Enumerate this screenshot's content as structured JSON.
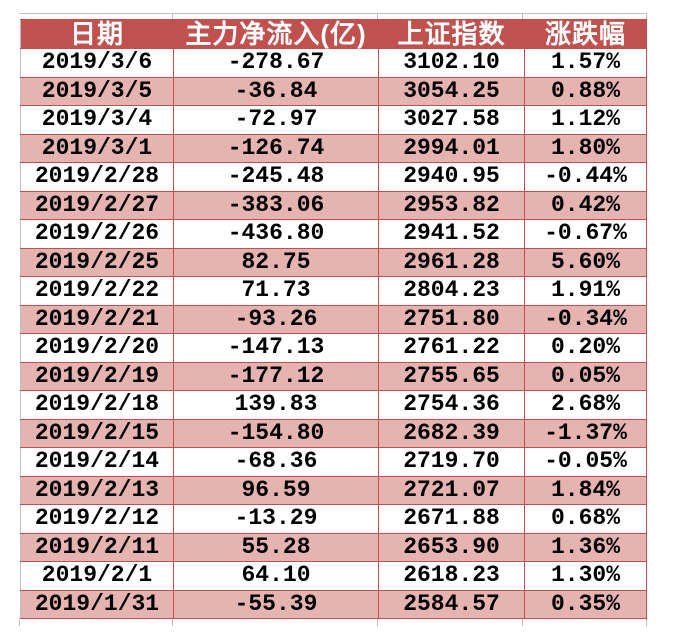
{
  "chart_data": {
    "type": "table",
    "columns": [
      "日期",
      "主力净流入(亿)",
      "上证指数",
      "涨跌幅"
    ],
    "rows": [
      [
        "2019/3/6",
        "-278.67",
        "3102.10",
        "1.57%"
      ],
      [
        "2019/3/5",
        "-36.84",
        "3054.25",
        "0.88%"
      ],
      [
        "2019/3/4",
        "-72.97",
        "3027.58",
        "1.12%"
      ],
      [
        "2019/3/1",
        "-126.74",
        "2994.01",
        "1.80%"
      ],
      [
        "2019/2/28",
        "-245.48",
        "2940.95",
        "-0.44%"
      ],
      [
        "2019/2/27",
        "-383.06",
        "2953.82",
        "0.42%"
      ],
      [
        "2019/2/26",
        "-436.80",
        "2941.52",
        "-0.67%"
      ],
      [
        "2019/2/25",
        "82.75",
        "2961.28",
        "5.60%"
      ],
      [
        "2019/2/22",
        "71.73",
        "2804.23",
        "1.91%"
      ],
      [
        "2019/2/21",
        "-93.26",
        "2751.80",
        "-0.34%"
      ],
      [
        "2019/2/20",
        "-147.13",
        "2761.22",
        "0.20%"
      ],
      [
        "2019/2/19",
        "-177.12",
        "2755.65",
        "0.05%"
      ],
      [
        "2019/2/18",
        "139.83",
        "2754.36",
        "2.68%"
      ],
      [
        "2019/2/15",
        "-154.80",
        "2682.39",
        "-1.37%"
      ],
      [
        "2019/2/14",
        "-68.36",
        "2719.70",
        "-0.05%"
      ],
      [
        "2019/2/13",
        "96.59",
        "2721.07",
        "1.84%"
      ],
      [
        "2019/2/12",
        "-13.29",
        "2671.88",
        "0.68%"
      ],
      [
        "2019/2/11",
        "55.28",
        "2653.90",
        "1.36%"
      ],
      [
        "2019/2/1",
        "64.10",
        "2618.23",
        "1.30%"
      ],
      [
        "2019/1/31",
        "-55.39",
        "2584.57",
        "0.35%"
      ]
    ]
  },
  "colors": {
    "header_bg": "#C0514E",
    "header_text": "#FFFFFF",
    "row_bg": "#FFFFFF",
    "row_alt_bg": "#E5B3B0",
    "border": "#C0504D",
    "gridline": "#BFBFBF",
    "cell_text": "#000000"
  }
}
